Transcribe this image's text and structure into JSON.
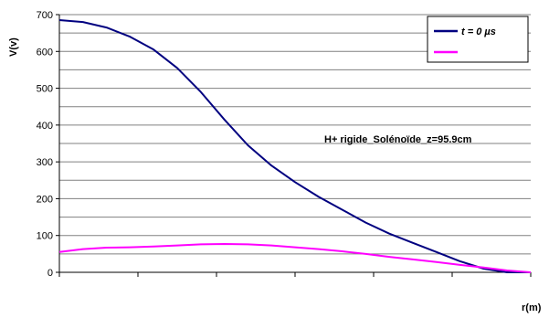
{
  "chart_data": {
    "type": "line",
    "ylabel": "V(v)",
    "xlabel": "r(m)",
    "ylim": [
      0,
      700
    ],
    "yticks": [
      0,
      100,
      200,
      300,
      400,
      500,
      600,
      700
    ],
    "grid": "horizontal gridlines every 50",
    "legend_position": "top-right",
    "annotation": "H+ rigide_Solénoïde_z=95.9cm",
    "x": [
      0,
      0.05,
      0.1,
      0.15,
      0.2,
      0.25,
      0.3,
      0.35,
      0.4,
      0.45,
      0.5,
      0.55,
      0.6,
      0.65,
      0.7,
      0.75,
      0.8,
      0.85,
      0.9,
      0.95,
      1.0
    ],
    "series": [
      {
        "name": "t = 0 µs",
        "color": "#000080",
        "values": [
          685,
          680,
          665,
          640,
          605,
          555,
          490,
          415,
          345,
          290,
          245,
          205,
          170,
          135,
          105,
          80,
          55,
          30,
          10,
          0,
          0
        ]
      },
      {
        "name": "",
        "color": "#ff00ff",
        "values": [
          55,
          63,
          67,
          68,
          70,
          73,
          76,
          77,
          76,
          73,
          68,
          63,
          57,
          50,
          42,
          35,
          28,
          20,
          13,
          5,
          0
        ]
      }
    ]
  }
}
